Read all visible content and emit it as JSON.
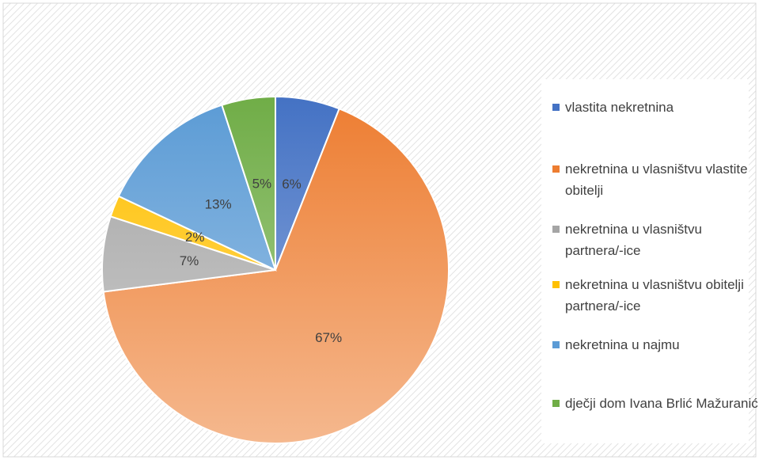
{
  "chart_data": {
    "type": "pie",
    "categories": [
      "vlastita nekretnina",
      "nekretnina u vlasništvu vlastite obitelji",
      "nekretnina u vlasništvu partnera/-ice",
      "nekretnina u vlasništvu obitelji partnera/-ice",
      "nekretnina u najmu",
      "dječji dom Ivana Brlić Mažuranić"
    ],
    "values": [
      6,
      67,
      7,
      2,
      13,
      5
    ],
    "value_labels": [
      "6%",
      "67%",
      "7%",
      "2%",
      "13%",
      "5%"
    ],
    "colors": [
      "#4472c4",
      "#ed7d31",
      "#a5a5a5",
      "#ffc000",
      "#5b9bd5",
      "#70ad47"
    ],
    "legend": "right"
  }
}
